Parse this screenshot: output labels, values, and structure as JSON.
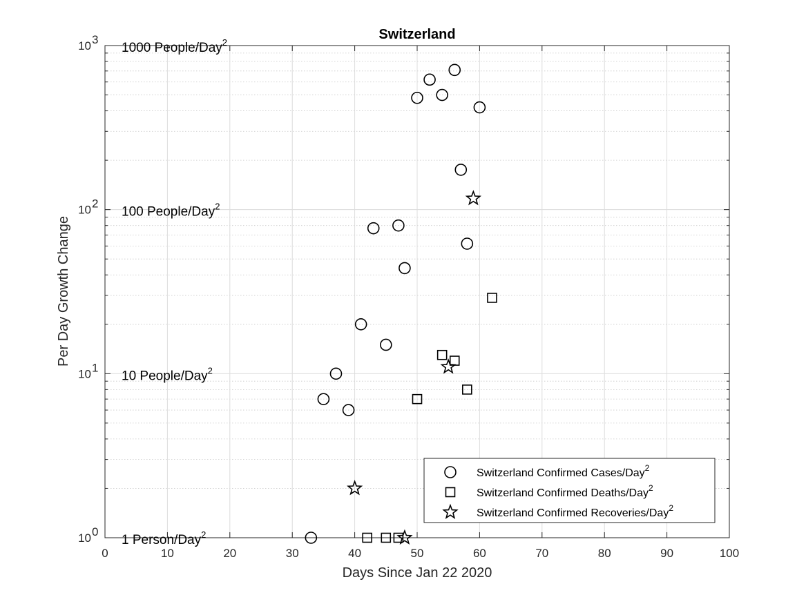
{
  "chart_data": {
    "type": "scatter",
    "title": "Switzerland",
    "xlabel": "Days Since Jan 22 2020",
    "ylabel": "Per Day Growth Change",
    "xlim": [
      0,
      100
    ],
    "ylim": [
      1,
      1000
    ],
    "yscale": "log",
    "grid": true,
    "minor_grid": true,
    "legend_position": "bottom-right",
    "x_ticks": [
      "0",
      "10",
      "20",
      "30",
      "40",
      "50",
      "60",
      "70",
      "80",
      "90",
      "100"
    ],
    "y_ticks": [
      {
        "value": 1,
        "base": "10",
        "exp": "0"
      },
      {
        "value": 10,
        "base": "10",
        "exp": "1"
      },
      {
        "value": 100,
        "base": "10",
        "exp": "2"
      },
      {
        "value": 1000,
        "base": "10",
        "exp": "3"
      }
    ],
    "annotations": [
      {
        "y": 1000,
        "text": "1000 People/Day",
        "sup": "2"
      },
      {
        "y": 100,
        "text": "100 People/Day",
        "sup": "2"
      },
      {
        "y": 10,
        "text": "10 People/Day",
        "sup": "2"
      },
      {
        "y": 1,
        "text": "1 Person/Day",
        "sup": "2"
      }
    ],
    "series": [
      {
        "name": "Switzerland Confirmed Cases/Day",
        "name_sup": "2",
        "marker": "circle",
        "points": [
          [
            33,
            1
          ],
          [
            35,
            7
          ],
          [
            37,
            10
          ],
          [
            39,
            6
          ],
          [
            41,
            20
          ],
          [
            43,
            77
          ],
          [
            45,
            15
          ],
          [
            47,
            80
          ],
          [
            48,
            44
          ],
          [
            50,
            480
          ],
          [
            52,
            620
          ],
          [
            54,
            500
          ],
          [
            56,
            710
          ],
          [
            57,
            175
          ],
          [
            58,
            62
          ],
          [
            60,
            420
          ]
        ]
      },
      {
        "name": "Switzerland Confirmed Deaths/Day",
        "name_sup": "2",
        "marker": "square",
        "points": [
          [
            42,
            1
          ],
          [
            45,
            1
          ],
          [
            47,
            1
          ],
          [
            50,
            7
          ],
          [
            54,
            13
          ],
          [
            56,
            12
          ],
          [
            58,
            8
          ],
          [
            62,
            29
          ]
        ]
      },
      {
        "name": "Switzerland Confirmed Recoveries/Day",
        "name_sup": "2",
        "marker": "star",
        "points": [
          [
            40,
            2
          ],
          [
            48,
            1
          ],
          [
            55,
            11
          ],
          [
            59,
            117
          ]
        ]
      }
    ]
  }
}
